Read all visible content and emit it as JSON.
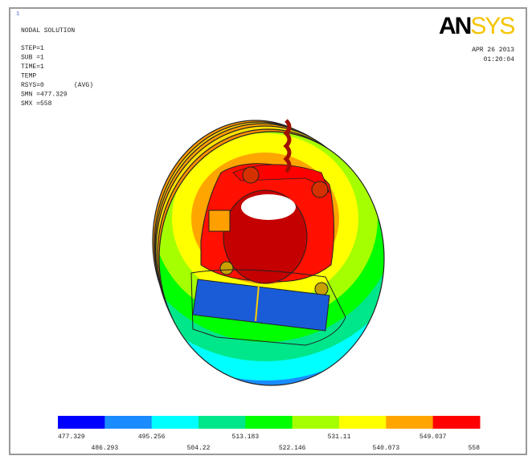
{
  "header": {
    "marker": "1",
    "title": "NODAL SOLUTION",
    "lines": [
      "STEP=1",
      "SUB =1",
      "TIME=1",
      "TEMP",
      "RSYS=0",
      "SMN =477.329",
      "SMX =558"
    ],
    "avg": "(AVG)",
    "date": "APR 26 2013",
    "time": "01:20:04",
    "logo": "ANSYS"
  },
  "legend": {
    "labels": [
      "477.329",
      "486.293",
      "495.256",
      "504.22",
      "513.183",
      "522.146",
      "531.11",
      "540.073",
      "549.037",
      "558"
    ],
    "colors": [
      "#0000ff",
      "#1a8cff",
      "#00ffff",
      "#00e68a",
      "#00ff00",
      "#a6ff00",
      "#ffff00",
      "#ffa500",
      "#ff0000"
    ]
  }
}
